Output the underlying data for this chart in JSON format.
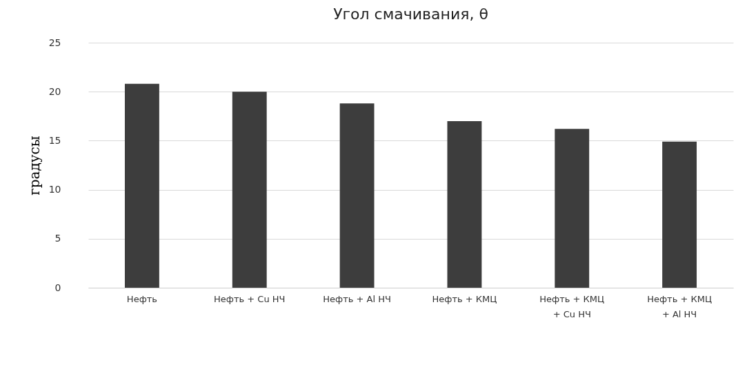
{
  "chart_data": {
    "type": "bar",
    "title": "Угол смачивания, θ",
    "ylabel": "градусы",
    "categories": [
      "Нефть",
      "Нефть + Cu НЧ",
      "Нефть + Al НЧ",
      "Нефть + КМЦ",
      "Нефть + КМЦ + Cu НЧ",
      "Нефть + КМЦ + Al НЧ"
    ],
    "values": [
      20.8,
      20.0,
      18.8,
      17.0,
      16.2,
      14.9
    ],
    "color": "#3d3d3d",
    "ylim": [
      0,
      25
    ],
    "yticks": [
      0,
      5,
      10,
      15,
      20,
      25
    ],
    "grid": "y"
  }
}
